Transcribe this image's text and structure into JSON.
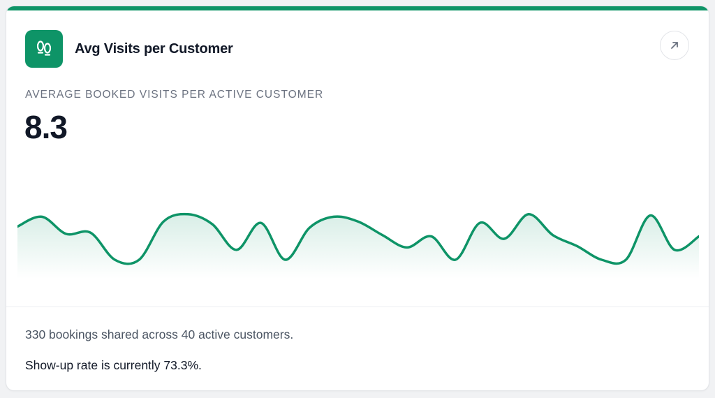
{
  "card": {
    "title": "Avg Visits per Customer",
    "icon": "footprints-icon",
    "action_icon": "arrow-up-right-icon",
    "accent_color": "#0e9467"
  },
  "metric": {
    "label": "AVERAGE BOOKED VISITS PER ACTIVE CUSTOMER",
    "value": "8.3"
  },
  "chart_data": {
    "type": "area",
    "values": [
      0.62,
      0.78,
      0.5,
      0.52,
      0.08,
      0.08,
      0.7,
      0.82,
      0.66,
      0.24,
      0.68,
      0.08,
      0.6,
      0.78,
      0.7,
      0.48,
      0.28,
      0.46,
      0.08,
      0.68,
      0.42,
      0.82,
      0.48,
      0.3,
      0.08,
      0.08,
      0.8,
      0.24,
      0.46
    ]
  },
  "footer": {
    "summary": "330 bookings shared across 40 active customers.",
    "show_up": "Show-up rate is currently 73.3%."
  }
}
